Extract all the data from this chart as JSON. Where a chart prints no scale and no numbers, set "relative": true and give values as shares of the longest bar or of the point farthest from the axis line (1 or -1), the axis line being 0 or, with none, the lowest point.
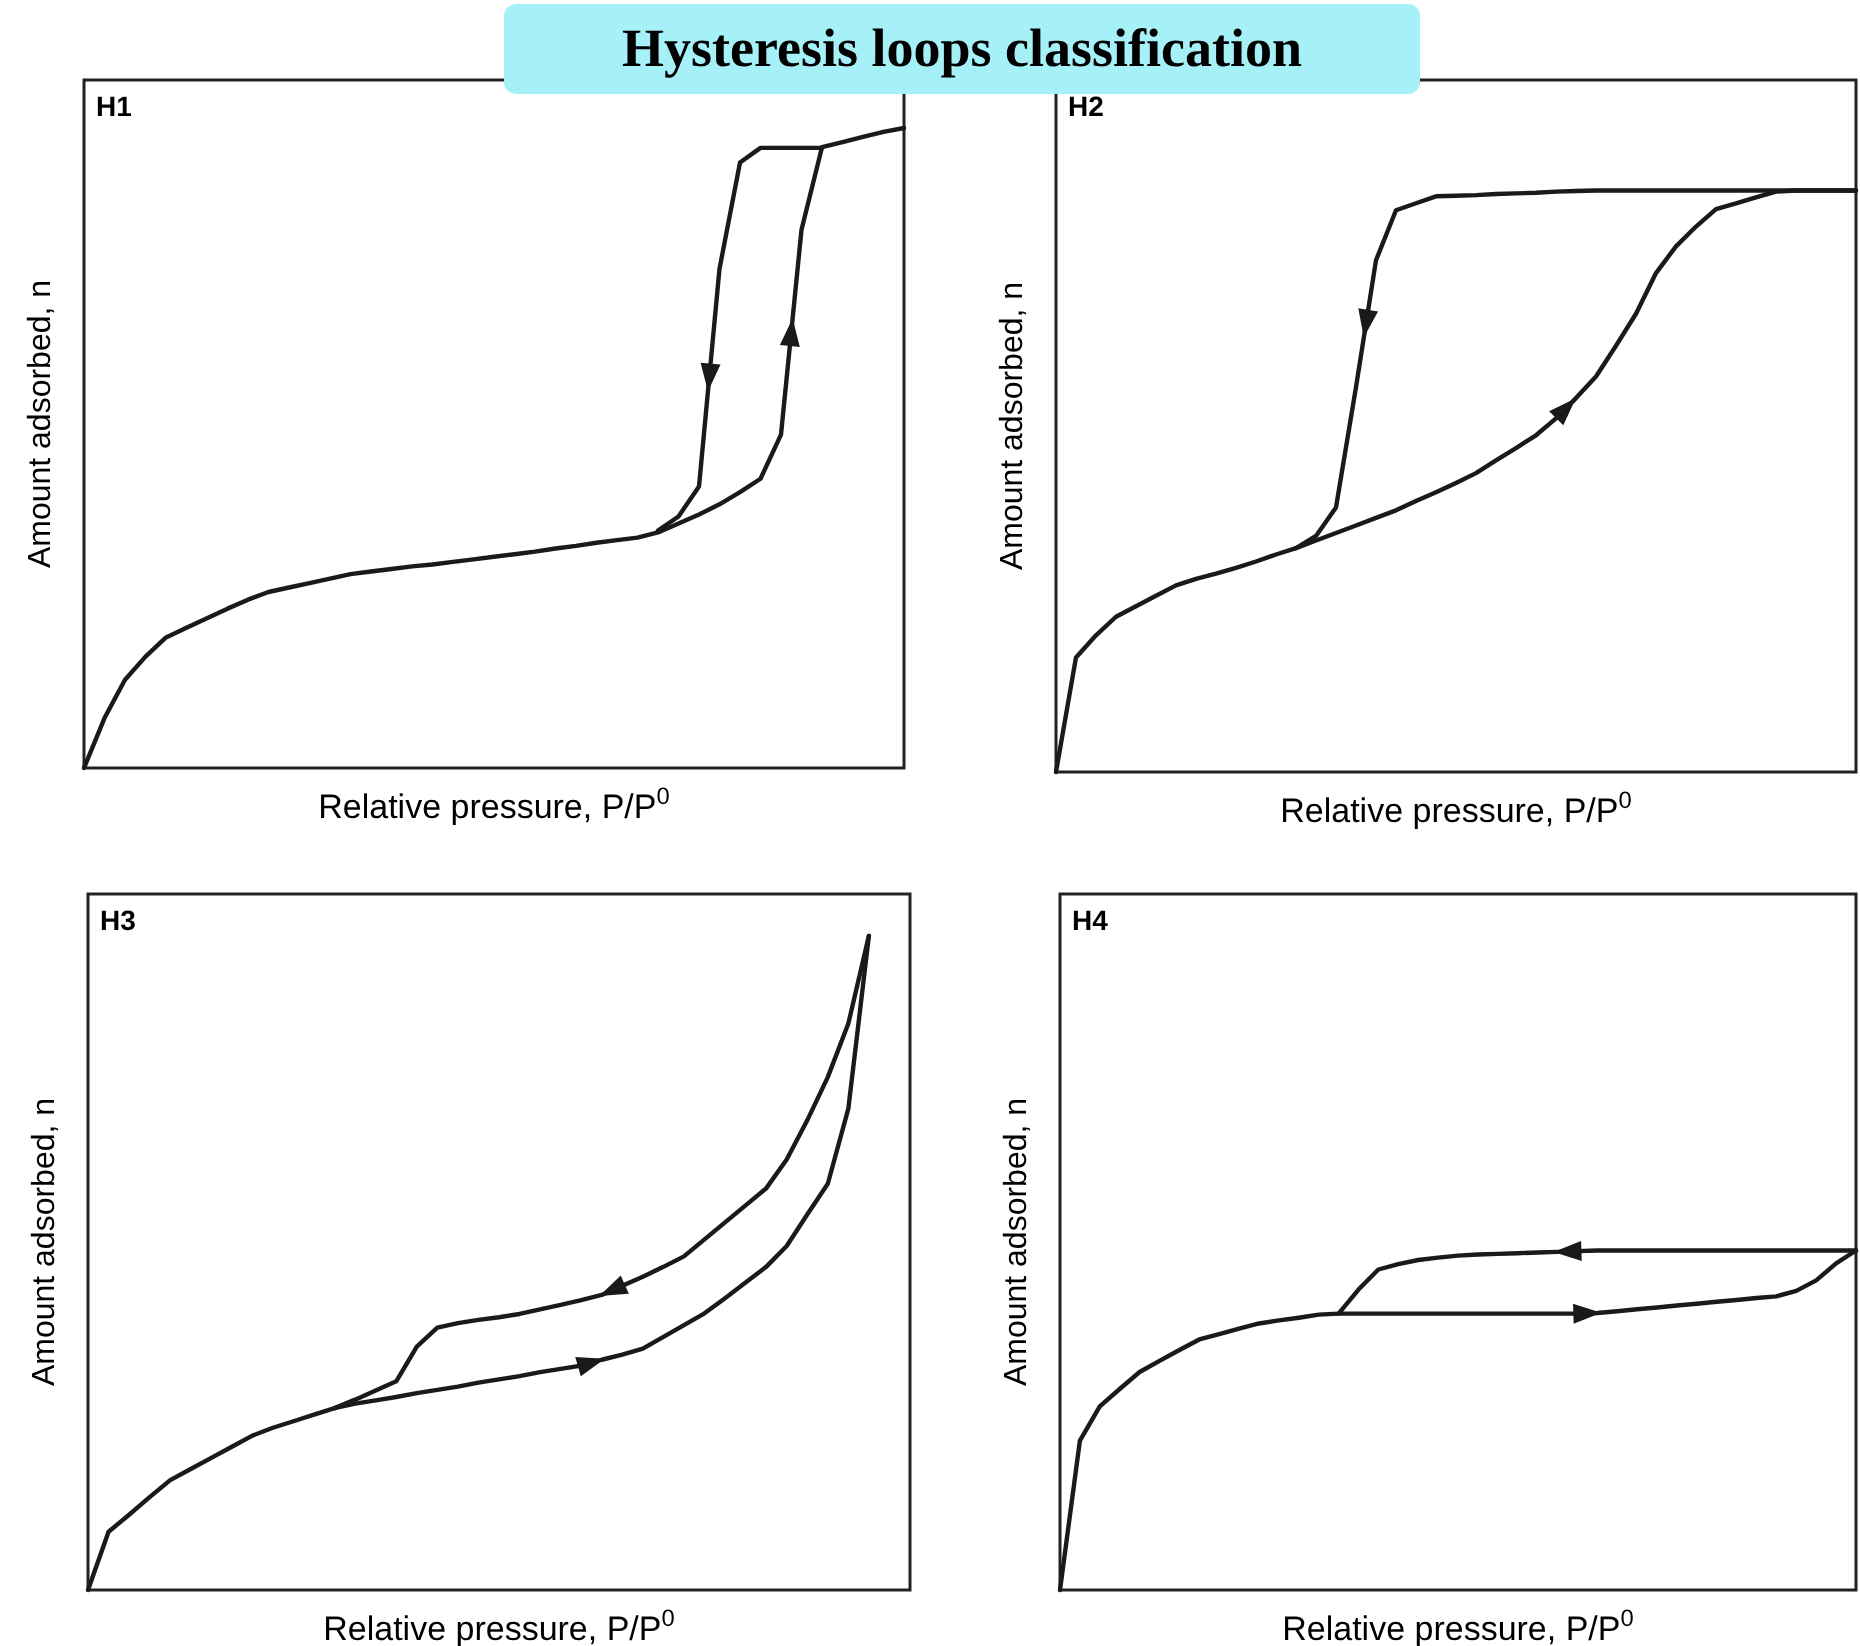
{
  "chart_data": [
    {
      "type": "line",
      "title": "H1",
      "xlabel": "Relative pressure, P/P$^{0}$",
      "ylabel": "Amount adsorbed, n",
      "annotations": [
        "Hysteresis loops classification"
      ],
      "relative": true,
      "line_style": "solid",
      "categories": [
        null,
        null,
        null,
        null,
        null,
        null,
        null,
        null,
        null,
        null,
        null,
        null,
        null,
        null,
        null,
        null,
        null,
        null,
        null,
        null,
        null,
        null,
        null,
        null,
        null,
        null,
        null,
        null,
        null,
        null,
        null,
        null,
        null,
        null,
        null,
        null,
        null,
        null,
        null,
        null,
        null
      ],
      "series": [
        {
          "color": "#1a1a1a",
          "values": [
            0,
            0.078,
            0.138,
            0.174,
            0.204,
            0.219,
            0.234,
            0.249,
            0.263,
            0.275,
            0.282,
            0.289,
            0.296,
            0.303,
            0.307,
            0.311,
            0.315,
            0.318,
            0.322,
            0.326,
            0.33,
            0.334,
            0.338,
            0.343,
            0.347,
            0.352,
            0.356,
            0.36,
            0.368,
            0.382,
            0.396,
            0.412,
            0.431,
            0.452,
            0.521,
            0.841,
            0.97,
            0.978,
            0.986,
            0.994,
            1
          ]
        },
        {
          "color": "#1a1a1a",
          "values": [
            null,
            null,
            null,
            null,
            null,
            null,
            null,
            null,
            null,
            null,
            null,
            null,
            null,
            null,
            null,
            null,
            null,
            null,
            null,
            null,
            null,
            null,
            null,
            null,
            null,
            null,
            null,
            null,
            0.371,
            0.393,
            0.44,
            0.78,
            0.946,
            0.969,
            0.969,
            0.969,
            0.969,
            null,
            null,
            null,
            null
          ]
        }
      ]
    },
    {
      "type": "line",
      "title": "H2",
      "xlabel": "Relative pressure, P/P$^{0}$",
      "ylabel": "Amount adsorbed, n",
      "relative": true,
      "line_style": "solid",
      "categories": [
        null,
        null,
        null,
        null,
        null,
        null,
        null,
        null,
        null,
        null,
        null,
        null,
        null,
        null,
        null,
        null,
        null,
        null,
        null,
        null,
        null,
        null,
        null,
        null,
        null,
        null,
        null,
        null,
        null,
        null,
        null,
        null,
        null,
        null,
        null,
        null,
        null,
        null,
        null,
        null,
        null
      ],
      "series": [
        {
          "color": "#1a1a1a",
          "values": [
            0,
            0.197,
            0.235,
            0.267,
            0.285,
            0.303,
            0.321,
            0.332,
            0.341,
            0.351,
            0.362,
            0.374,
            0.385,
            0.398,
            0.411,
            0.424,
            0.437,
            0.45,
            0.466,
            0.481,
            0.497,
            0.514,
            0.536,
            0.557,
            0.579,
            0.608,
            0.643,
            0.68,
            0.733,
            0.788,
            0.858,
            0.904,
            0.938,
            0.968,
            0.978,
            0.988,
            0.998,
            1,
            1,
            1,
            1
          ]
        },
        {
          "color": "#1a1a1a",
          "values": [
            null,
            null,
            null,
            null,
            null,
            null,
            null,
            null,
            null,
            null,
            null,
            null,
            0.385,
            0.406,
            0.455,
            0.662,
            0.88,
            0.966,
            0.978,
            0.99,
            0.991,
            0.992,
            0.994,
            0.995,
            0.996,
            0.998,
            0.999,
            1,
            1,
            1,
            1,
            1,
            1,
            1,
            1,
            1,
            1,
            1,
            1,
            1,
            1
          ]
        }
      ]
    },
    {
      "type": "line",
      "title": "H3",
      "xlabel": "Relative pressure, P/P$^{0}$",
      "ylabel": "Amount adsorbed, n",
      "relative": true,
      "line_style": "solid",
      "categories": [
        null,
        null,
        null,
        null,
        null,
        null,
        null,
        null,
        null,
        null,
        null,
        null,
        null,
        null,
        null,
        null,
        null,
        null,
        null,
        null,
        null,
        null,
        null,
        null,
        null,
        null,
        null,
        null,
        null,
        null,
        null,
        null,
        null,
        null,
        null,
        null,
        null,
        null,
        null,
        null,
        null
      ],
      "series": [
        {
          "color": "#1a1a1a",
          "values": [
            0,
            0.089,
            0.115,
            0.142,
            0.168,
            0.185,
            0.202,
            0.219,
            0.236,
            0.248,
            0.258,
            0.268,
            0.278,
            0.285,
            0.29,
            0.295,
            0.301,
            0.306,
            0.311,
            0.317,
            0.322,
            0.327,
            0.333,
            0.338,
            0.343,
            0.352,
            0.36,
            0.369,
            0.387,
            0.405,
            0.423,
            0.446,
            0.47,
            0.494,
            0.526,
            0.574,
            0.621,
            0.736,
            1,
            null,
            null
          ]
        },
        {
          "color": "#1a1a1a",
          "values": [
            null,
            null,
            null,
            null,
            null,
            null,
            null,
            null,
            null,
            null,
            null,
            null,
            0.278,
            0.291,
            0.305,
            0.319,
            0.372,
            0.401,
            0.408,
            0.413,
            0.417,
            0.422,
            0.429,
            0.436,
            0.443,
            0.451,
            0.465,
            0.479,
            0.494,
            0.51,
            0.536,
            0.562,
            0.588,
            0.614,
            0.658,
            0.718,
            0.784,
            0.866,
            1,
            null,
            null
          ]
        }
      ]
    },
    {
      "type": "line",
      "title": "H4",
      "xlabel": "Relative pressure, P/P$^{0}$",
      "ylabel": "Amount adsorbed, n",
      "relative": true,
      "line_style": "solid",
      "categories": [
        null,
        null,
        null,
        null,
        null,
        null,
        null,
        null,
        null,
        null,
        null,
        null,
        null,
        null,
        null,
        null,
        null,
        null,
        null,
        null,
        null,
        null,
        null,
        null,
        null,
        null,
        null,
        null,
        null,
        null,
        null,
        null,
        null,
        null,
        null,
        null,
        null,
        null,
        null,
        null,
        null
      ],
      "series": [
        {
          "color": "#1a1a1a",
          "values": [
            0,
            0.44,
            0.541,
            0.592,
            0.642,
            0.675,
            0.707,
            0.738,
            0.754,
            0.77,
            0.785,
            0.794,
            0.802,
            0.811,
            0.814,
            0.814,
            0.814,
            0.814,
            0.814,
            0.814,
            0.814,
            0.814,
            0.814,
            0.814,
            0.814,
            0.814,
            0.814,
            0.816,
            0.821,
            0.827,
            0.832,
            0.838,
            0.843,
            0.849,
            0.854,
            0.86,
            0.865,
            0.881,
            0.912,
            0.962,
            1
          ]
        },
        {
          "color": "#1a1a1a",
          "values": [
            null,
            null,
            null,
            null,
            null,
            null,
            null,
            null,
            null,
            null,
            null,
            null,
            null,
            null,
            0.814,
            0.885,
            0.944,
            0.96,
            0.972,
            0.979,
            0.985,
            0.988,
            0.99,
            0.992,
            0.994,
            0.996,
            0.998,
            1,
            1,
            1,
            1,
            1,
            1,
            1,
            1,
            1,
            1,
            1,
            1,
            1,
            1
          ]
        }
      ]
    }
  ]
}
